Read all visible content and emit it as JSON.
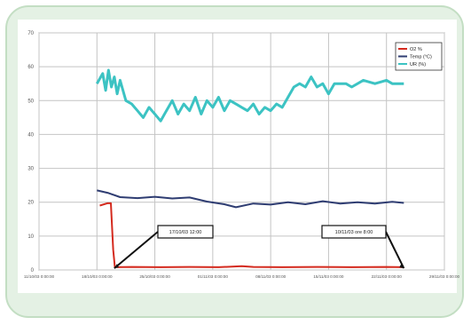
{
  "chart_data": {
    "type": "line",
    "y_ticks": [
      0,
      10,
      20,
      30,
      40,
      50,
      60,
      70
    ],
    "ylim": [
      0,
      70
    ],
    "x_tick_labels": [
      "11/10/03 0:00:00",
      "18/10/03 0:00:00",
      "25/10/03 0:00:00",
      "01/11/03 0:00:00",
      "08/11/03 0:00:00",
      "15/11/03 0:00:00",
      "22/11/03 0:00:00",
      "29/11/03 0:00:00"
    ],
    "xlim": [
      0,
      7
    ],
    "grid": true,
    "legend_position": "top-right",
    "series": [
      {
        "name": "O2 %",
        "color": "#d42a1e",
        "points": [
          [
            1.05,
            19
          ],
          [
            1.18,
            19.7
          ],
          [
            1.24,
            19.7
          ],
          [
            1.28,
            6
          ],
          [
            1.31,
            0.8
          ],
          [
            1.6,
            0.9
          ],
          [
            2.1,
            0.8
          ],
          [
            2.6,
            0.9
          ],
          [
            3.1,
            0.8
          ],
          [
            3.5,
            1.1
          ],
          [
            3.7,
            0.9
          ],
          [
            4.2,
            0.8
          ],
          [
            4.8,
            0.9
          ],
          [
            5.4,
            0.8
          ],
          [
            6.0,
            0.9
          ],
          [
            6.3,
            0.8
          ]
        ]
      },
      {
        "name": "Temp (°C)",
        "color": "#2f3d72",
        "points": [
          [
            1.0,
            23.5
          ],
          [
            1.2,
            22.7
          ],
          [
            1.4,
            21.5
          ],
          [
            1.7,
            21.2
          ],
          [
            2.0,
            21.6
          ],
          [
            2.3,
            21.1
          ],
          [
            2.6,
            21.4
          ],
          [
            2.9,
            20.2
          ],
          [
            3.2,
            19.4
          ],
          [
            3.4,
            18.5
          ],
          [
            3.7,
            19.6
          ],
          [
            4.0,
            19.3
          ],
          [
            4.3,
            20.0
          ],
          [
            4.6,
            19.4
          ],
          [
            4.9,
            20.3
          ],
          [
            5.2,
            19.6
          ],
          [
            5.5,
            20.0
          ],
          [
            5.8,
            19.6
          ],
          [
            6.1,
            20.1
          ],
          [
            6.3,
            19.8
          ]
        ]
      },
      {
        "name": "UR (%)",
        "color": "#3cc3c3",
        "points": [
          [
            1.0,
            55
          ],
          [
            1.1,
            58
          ],
          [
            1.15,
            53
          ],
          [
            1.2,
            59
          ],
          [
            1.25,
            54
          ],
          [
            1.3,
            57
          ],
          [
            1.35,
            52
          ],
          [
            1.4,
            56
          ],
          [
            1.5,
            50
          ],
          [
            1.6,
            49
          ],
          [
            1.7,
            47
          ],
          [
            1.8,
            45
          ],
          [
            1.9,
            48
          ],
          [
            2.0,
            46
          ],
          [
            2.1,
            44
          ],
          [
            2.2,
            47
          ],
          [
            2.3,
            50
          ],
          [
            2.4,
            46
          ],
          [
            2.5,
            49
          ],
          [
            2.6,
            47
          ],
          [
            2.7,
            51
          ],
          [
            2.8,
            46
          ],
          [
            2.9,
            50
          ],
          [
            3.0,
            48
          ],
          [
            3.1,
            51
          ],
          [
            3.2,
            47
          ],
          [
            3.3,
            50
          ],
          [
            3.4,
            49
          ],
          [
            3.5,
            48
          ],
          [
            3.6,
            47
          ],
          [
            3.7,
            49
          ],
          [
            3.8,
            46
          ],
          [
            3.9,
            48
          ],
          [
            4.0,
            47
          ],
          [
            4.1,
            49
          ],
          [
            4.2,
            48
          ],
          [
            4.3,
            51
          ],
          [
            4.4,
            54
          ],
          [
            4.5,
            55
          ],
          [
            4.6,
            54
          ],
          [
            4.7,
            57
          ],
          [
            4.8,
            54
          ],
          [
            4.9,
            55
          ],
          [
            5.0,
            52
          ],
          [
            5.1,
            55
          ],
          [
            5.3,
            55
          ],
          [
            5.4,
            54
          ],
          [
            5.6,
            56
          ],
          [
            5.8,
            55
          ],
          [
            6.0,
            56
          ],
          [
            6.1,
            55
          ],
          [
            6.3,
            55
          ]
        ]
      }
    ],
    "annotations": [
      {
        "text": "17/10/03 12:00",
        "target": [
          1.3,
          0.5
        ]
      },
      {
        "text": "10/11/03 ore 8:00",
        "target": [
          6.3,
          0.5
        ]
      }
    ]
  }
}
